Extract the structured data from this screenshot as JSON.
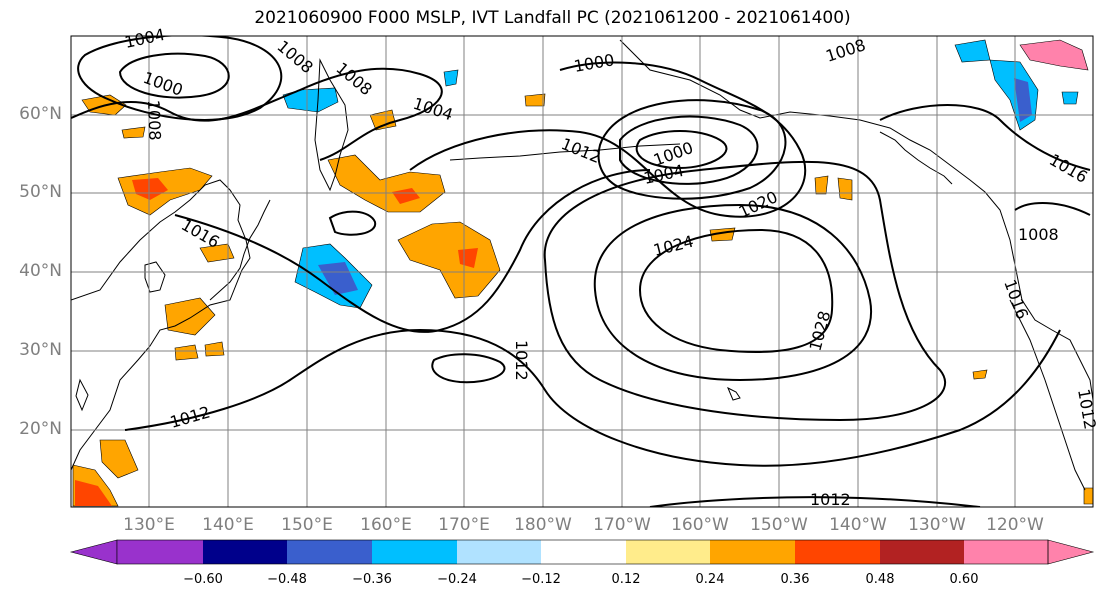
{
  "title": "2021060900 F000 MSLP, IVT Landfall PC (2021061200 - 2021061400)",
  "lat_labels": [
    "60°N",
    "50°N",
    "40°N",
    "30°N",
    "20°N"
  ],
  "lon_labels": [
    "130°E",
    "140°E",
    "150°E",
    "160°E",
    "170°E",
    "180°W",
    "170°W",
    "160°W",
    "150°W",
    "140°W",
    "130°W",
    "120°W"
  ],
  "isobar_labels": [
    "1004",
    "1000",
    "1008",
    "1008",
    "1008",
    "1004",
    "1000",
    "1012",
    "1000",
    "1004",
    "1008",
    "1016",
    "1020",
    "1024",
    "1028",
    "1012",
    "1012",
    "1012",
    "1016",
    "1008",
    "1016",
    "1012"
  ],
  "colorbar": {
    "ticks": [
      "−0.60",
      "−0.48",
      "−0.36",
      "−0.24",
      "−0.12",
      "0.12",
      "0.24",
      "0.36",
      "0.48",
      "0.60"
    ],
    "colors": [
      "#9932cc",
      "#00008b",
      "#3a5fcd",
      "#00bfff",
      "#b0e2ff",
      "#ffffff",
      "#ffec8b",
      "#ffa500",
      "#ff4500",
      "#b22222",
      "#ff82ab"
    ]
  },
  "gridline_color": "#808080"
}
